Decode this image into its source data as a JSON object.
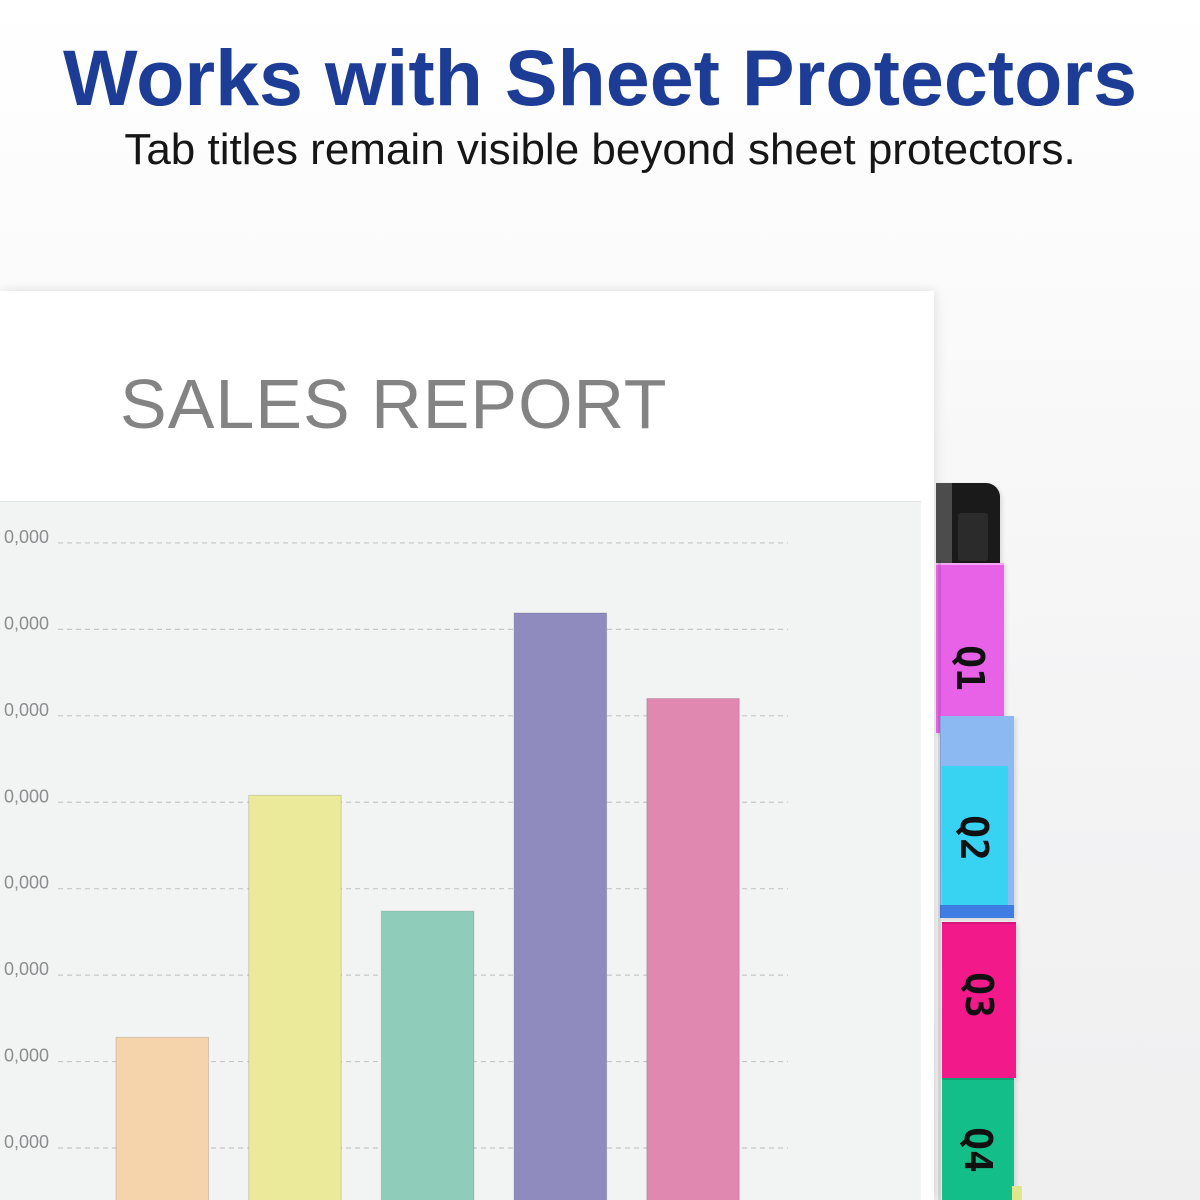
{
  "headline": {
    "title": "Works with Sheet Protectors",
    "subtitle": "Tab titles remain visible beyond sheet protectors."
  },
  "colors": {
    "headline": "#1d3c96",
    "subtitle": "#161616",
    "report_title": "#838383",
    "chart_panel": "#f2f4f4",
    "gridline": "#c4c8c8",
    "tick_label": "#8b8e8e",
    "black_tab": "#1a1a1a"
  },
  "chart_data": {
    "type": "bar",
    "title": "SALES REPORT",
    "y_tick_labels": [
      "0,000",
      "0,000",
      "0,000",
      "0,000",
      "0,000",
      "0,000",
      "0,000",
      "0,000"
    ],
    "values": [
      2.28,
      5.08,
      3.74,
      7.19,
      6.2
    ],
    "bar_colors": [
      "#f5d4ac",
      "#ebea9b",
      "#8fcdba",
      "#8f8bbe",
      "#e188b1"
    ],
    "grid": true
  },
  "tabs": [
    {
      "label": "Q1",
      "color": "#e762e7"
    },
    {
      "label": "Q2",
      "color": "#38d3f3"
    },
    {
      "label": "Q3",
      "color": "#f21a8b"
    },
    {
      "label": "Q4",
      "color": "#14be88"
    }
  ]
}
